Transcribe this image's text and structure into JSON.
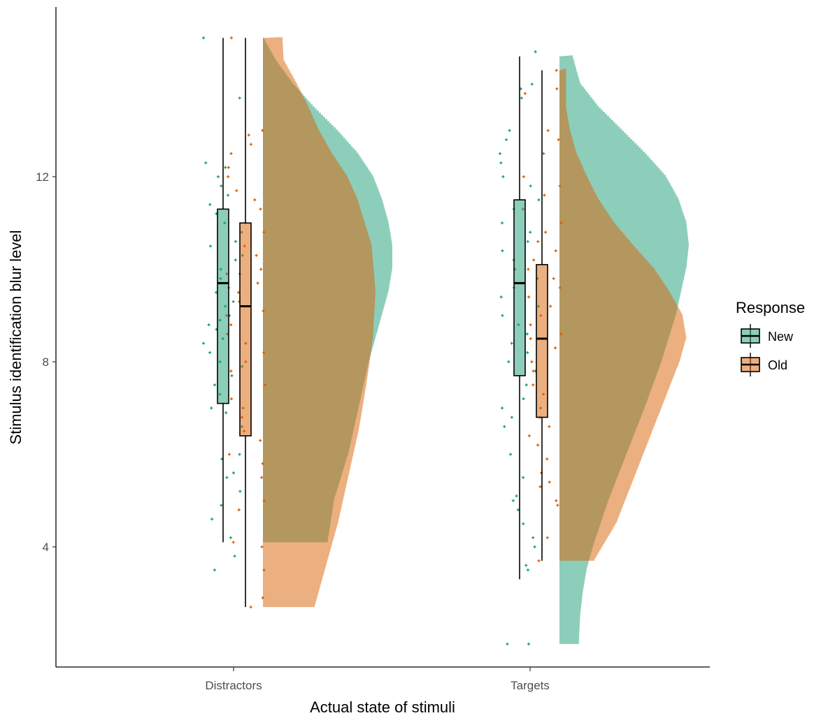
{
  "chart_data": {
    "type": "raincloud",
    "xlabel": "Actual state of stimuli",
    "ylabel": "Stimulus identification blur level",
    "categories": [
      "Distractors",
      "Targets"
    ],
    "y_ticks": [
      4,
      8,
      12
    ],
    "ylim": [
      1.5,
      16.2
    ],
    "grid": false,
    "legend": {
      "title": "Response",
      "position": "right",
      "entries": [
        {
          "name": "New",
          "color": "#1b9e77"
        },
        {
          "name": "Old",
          "color": "#d95f02"
        }
      ]
    },
    "colors": {
      "New": "#1b9e77",
      "Old": "#d95f02"
    },
    "boxplots": [
      {
        "category": "Distractors",
        "group": "New",
        "whisker_low": 4.1,
        "q1": 7.1,
        "median": 9.7,
        "q3": 11.3,
        "whisker_high": 15.0
      },
      {
        "category": "Distractors",
        "group": "Old",
        "whisker_low": 2.7,
        "q1": 6.4,
        "median": 9.2,
        "q3": 11.0,
        "whisker_high": 15.0
      },
      {
        "category": "Targets",
        "group": "New",
        "whisker_low": 3.3,
        "q1": 7.7,
        "median": 9.7,
        "q3": 11.5,
        "whisker_high": 14.6
      },
      {
        "category": "Targets",
        "group": "Old",
        "whisker_low": 3.7,
        "q1": 6.8,
        "median": 8.5,
        "q3": 10.1,
        "whisker_high": 14.3
      }
    ],
    "densities": [
      {
        "category": "Distractors",
        "group": "New",
        "range": [
          4.1,
          15.0
        ],
        "profile": [
          [
            4.1,
            0.5
          ],
          [
            5.0,
            0.55
          ],
          [
            6.0,
            0.66
          ],
          [
            7.0,
            0.74
          ],
          [
            7.5,
            0.78
          ],
          [
            8.0,
            0.82
          ],
          [
            8.5,
            0.87
          ],
          [
            9.0,
            0.92
          ],
          [
            9.5,
            0.97
          ],
          [
            10.0,
            1.0
          ],
          [
            10.5,
            1.0
          ],
          [
            11.0,
            0.97
          ],
          [
            11.5,
            0.92
          ],
          [
            12.0,
            0.85
          ],
          [
            12.5,
            0.73
          ],
          [
            13.0,
            0.57
          ],
          [
            13.5,
            0.39
          ],
          [
            14.0,
            0.23
          ],
          [
            14.5,
            0.1
          ],
          [
            15.0,
            0.0
          ]
        ]
      },
      {
        "category": "Distractors",
        "group": "Old",
        "range": [
          2.7,
          15.0
        ],
        "profile": [
          [
            2.7,
            0.4
          ],
          [
            3.5,
            0.48
          ],
          [
            4.5,
            0.58
          ],
          [
            5.5,
            0.66
          ],
          [
            6.5,
            0.74
          ],
          [
            7.5,
            0.8
          ],
          [
            8.5,
            0.85
          ],
          [
            9.5,
            0.87
          ],
          [
            10.5,
            0.84
          ],
          [
            11.5,
            0.73
          ],
          [
            12.0,
            0.65
          ],
          [
            12.5,
            0.53
          ],
          [
            13.0,
            0.43
          ],
          [
            13.5,
            0.35
          ],
          [
            14.0,
            0.26
          ],
          [
            14.5,
            0.16
          ],
          [
            15.0,
            0.15
          ]
        ]
      },
      {
        "category": "Targets",
        "group": "New",
        "range": [
          1.9,
          14.6
        ],
        "profile": [
          [
            1.9,
            0.15
          ],
          [
            2.5,
            0.16
          ],
          [
            3.0,
            0.18
          ],
          [
            3.5,
            0.21
          ],
          [
            4.0,
            0.26
          ],
          [
            5.0,
            0.38
          ],
          [
            6.0,
            0.52
          ],
          [
            7.0,
            0.66
          ],
          [
            8.0,
            0.79
          ],
          [
            9.0,
            0.9
          ],
          [
            10.0,
            0.98
          ],
          [
            10.5,
            1.0
          ],
          [
            11.0,
            0.98
          ],
          [
            11.5,
            0.92
          ],
          [
            12.0,
            0.82
          ],
          [
            12.5,
            0.66
          ],
          [
            13.0,
            0.48
          ],
          [
            13.5,
            0.3
          ],
          [
            14.0,
            0.16
          ],
          [
            14.6,
            0.1
          ]
        ]
      },
      {
        "category": "Targets",
        "group": "Old",
        "range": [
          3.7,
          14.3
        ],
        "profile": [
          [
            3.7,
            0.27
          ],
          [
            4.5,
            0.44
          ],
          [
            5.5,
            0.58
          ],
          [
            6.5,
            0.72
          ],
          [
            7.5,
            0.86
          ],
          [
            8.0,
            0.93
          ],
          [
            8.5,
            0.98
          ],
          [
            9.0,
            0.95
          ],
          [
            9.5,
            0.85
          ],
          [
            10.0,
            0.73
          ],
          [
            10.5,
            0.57
          ],
          [
            11.0,
            0.42
          ],
          [
            11.5,
            0.3
          ],
          [
            12.0,
            0.21
          ],
          [
            12.5,
            0.13
          ],
          [
            13.0,
            0.08
          ],
          [
            13.5,
            0.05
          ],
          [
            14.3,
            0.05
          ]
        ]
      }
    ],
    "points": [
      {
        "category": "Distractors",
        "group": "New",
        "values": [
          15.0,
          13.7,
          12.3,
          12.2,
          12.0,
          11.8,
          11.6,
          11.4,
          11.2,
          11.0,
          10.8,
          10.6,
          10.5,
          10.3,
          10.2,
          10.0,
          9.9,
          9.8,
          9.6,
          9.5,
          9.3,
          9.2,
          9.0,
          8.9,
          8.8,
          8.7,
          8.5,
          8.4,
          8.2,
          8.0,
          7.9,
          7.7,
          7.5,
          7.3,
          7.0,
          6.9,
          6.6,
          6.0,
          5.9,
          5.6,
          5.5,
          5.2,
          4.9,
          4.6,
          4.2,
          3.8,
          3.5
        ]
      },
      {
        "category": "Distractors",
        "group": "Old",
        "values": [
          15.0,
          13.0,
          12.9,
          12.7,
          12.5,
          12.2,
          12.0,
          11.7,
          11.5,
          11.3,
          11.0,
          10.8,
          10.5,
          10.3,
          10.0,
          9.9,
          9.7,
          9.5,
          9.3,
          9.1,
          9.0,
          8.8,
          8.6,
          8.4,
          8.2,
          8.0,
          7.8,
          7.5,
          7.2,
          7.0,
          6.8,
          6.5,
          6.3,
          6.0,
          5.8,
          5.5,
          5.0,
          4.8,
          4.1,
          4.0,
          3.5,
          2.9,
          2.7
        ]
      },
      {
        "category": "Targets",
        "group": "New",
        "values": [
          14.7,
          14.0,
          13.9,
          13.7,
          13.0,
          12.8,
          12.5,
          12.3,
          12.0,
          11.8,
          11.5,
          11.3,
          11.0,
          10.8,
          10.6,
          10.4,
          10.2,
          10.0,
          9.8,
          9.6,
          9.4,
          9.2,
          9.0,
          8.8,
          8.6,
          8.4,
          8.2,
          8.0,
          7.8,
          7.5,
          7.2,
          7.0,
          6.8,
          6.6,
          6.0,
          5.5,
          5.1,
          5.0,
          4.8,
          4.5,
          4.2,
          4.0,
          3.6,
          3.5,
          1.9,
          1.9
        ]
      },
      {
        "category": "Targets",
        "group": "Old",
        "values": [
          14.3,
          13.9,
          13.8,
          13.0,
          12.8,
          12.5,
          12.0,
          11.8,
          11.6,
          11.3,
          11.0,
          10.8,
          10.6,
          10.4,
          10.2,
          10.0,
          9.8,
          9.6,
          9.4,
          9.2,
          9.0,
          8.8,
          8.6,
          8.5,
          8.3,
          8.0,
          7.8,
          7.5,
          7.3,
          7.0,
          6.8,
          6.6,
          6.4,
          6.2,
          5.9,
          5.6,
          5.4,
          5.3,
          5.0,
          4.9,
          4.2,
          3.7
        ]
      }
    ]
  }
}
